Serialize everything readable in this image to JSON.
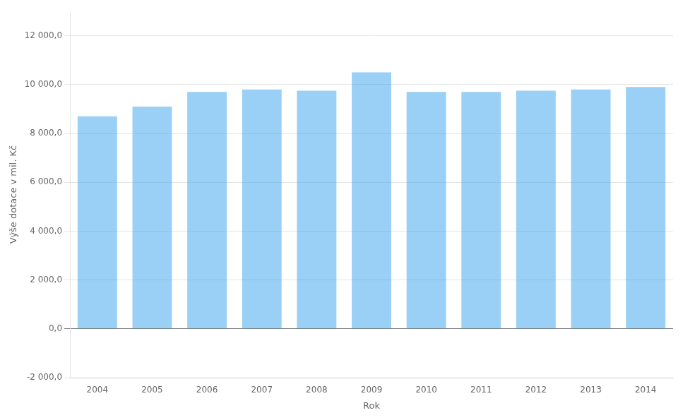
{
  "chart_data": {
    "type": "bar",
    "categories": [
      "2004",
      "2005",
      "2006",
      "2007",
      "2008",
      "2009",
      "2010",
      "2011",
      "2012",
      "2013",
      "2014"
    ],
    "values": [
      8700.0,
      9100.0,
      9700.0,
      9800.0,
      9750.0,
      10500.0,
      9700.0,
      9700.0,
      9750.0,
      9800.0,
      9900.0
    ],
    "xlabel": "Rok",
    "ylabel": "Výše dotace v mil. Kč",
    "ylim": [
      -2000,
      13000
    ],
    "yticks": [
      {
        "value": -2000,
        "label": "-2 000,0"
      },
      {
        "value": 0,
        "label": "0,0"
      },
      {
        "value": 2000,
        "label": "2 000,0"
      },
      {
        "value": 4000,
        "label": "4 000,0"
      },
      {
        "value": 6000,
        "label": "6 000,0"
      },
      {
        "value": 8000,
        "label": "8 000,0"
      },
      {
        "value": 10000,
        "label": "10 000,0"
      },
      {
        "value": 12000,
        "label": "12 000,0"
      }
    ],
    "grid": true
  }
}
